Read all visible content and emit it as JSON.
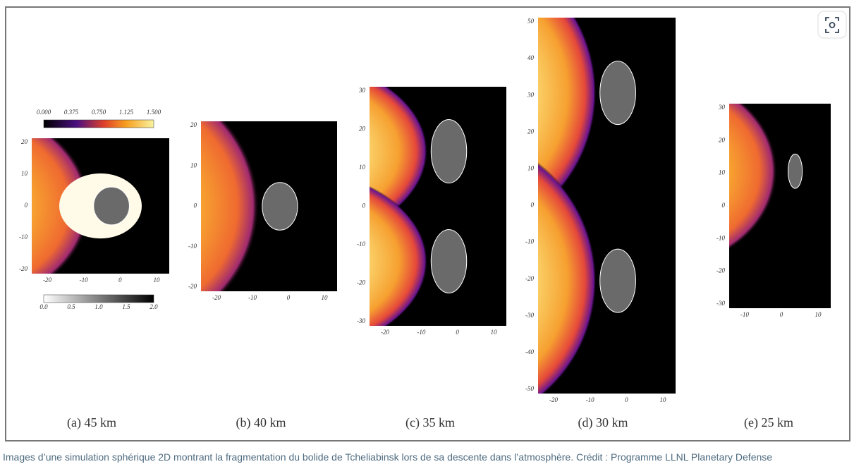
{
  "figure": {
    "colorbars": {
      "density": {
        "ticks": [
          "0.000",
          "0.375",
          "0.750",
          "1.125",
          "1.500"
        ]
      },
      "grayscale": {
        "ticks": [
          "0.0",
          "0.5",
          "1.0",
          "1.5",
          "2.0"
        ]
      }
    },
    "panels": [
      {
        "label": "(a) 45 km",
        "yticks": [
          20,
          10,
          0,
          -10,
          -20
        ],
        "xticks": [
          -20,
          -10,
          0,
          10
        ]
      },
      {
        "label": "(b) 40 km",
        "yticks": [
          20,
          10,
          0,
          -10,
          -20
        ],
        "xticks": [
          -20,
          -10,
          0,
          10
        ]
      },
      {
        "label": "(c) 35 km",
        "yticks": [
          30,
          20,
          10,
          0,
          -10,
          -20,
          -30
        ],
        "xticks": [
          -20,
          -10,
          0,
          10
        ]
      },
      {
        "label": "(d) 30 km",
        "yticks": [
          50,
          40,
          30,
          20,
          10,
          0,
          -10,
          -20,
          -30,
          -40,
          -50
        ],
        "xticks": [
          -20,
          -10,
          0,
          10
        ]
      },
      {
        "label": "(e) 25 km",
        "yticks": [
          30,
          20,
          10,
          0,
          -10,
          -20,
          -30
        ],
        "xticks": [
          -10,
          0,
          10
        ]
      }
    ]
  },
  "caption": "Images d’une simulation sphérique 2D montrant la fragmentation du bolide de Tcheliabinsk lors de sa descente dans l’atmosphère. Crédit : Programme LLNL Planetary Defense"
}
